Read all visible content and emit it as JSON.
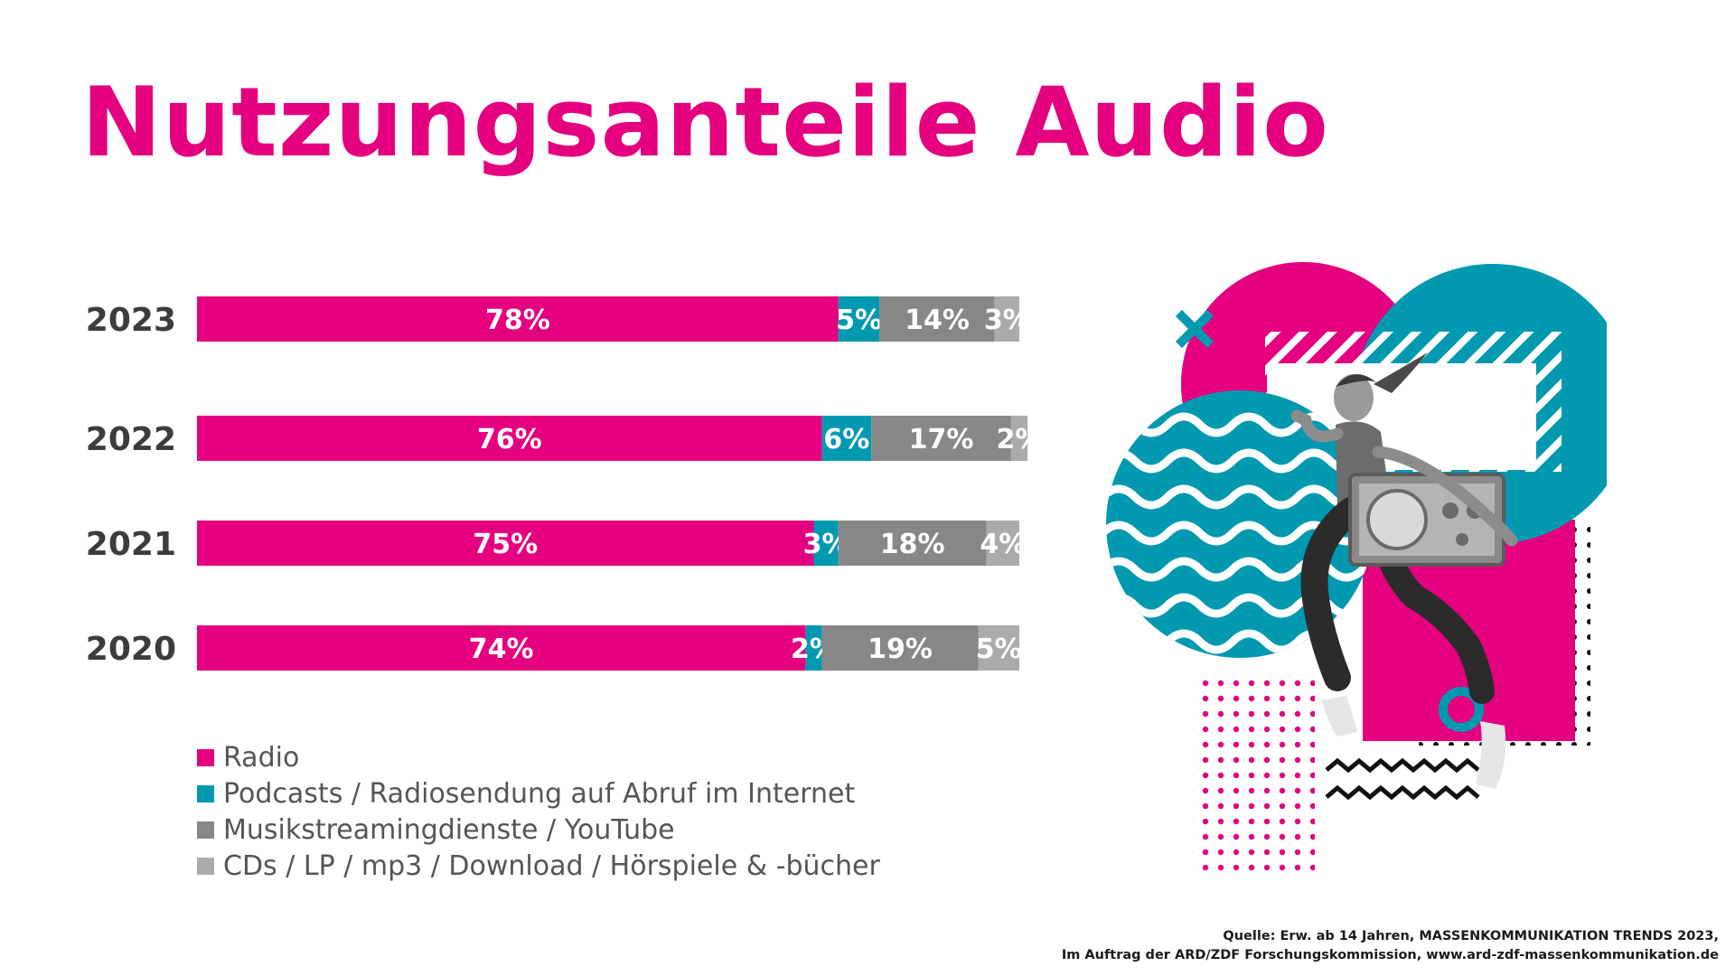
{
  "title": "Nutzungsanteile Audio",
  "source": {
    "line1": "Quelle: Erw. ab 14 Jahren, MASSENKOMMUNIKATION TRENDS 2023,",
    "line2": "Im Auftrag der ARD/ZDF Forschungskommission, www.ard-zdf-massenkommunikation.de"
  },
  "colors": {
    "brand": "#e4007f",
    "accent": "#0099b0"
  },
  "chart_data": {
    "type": "bar",
    "orientation": "horizontal",
    "stacked": true,
    "categories": [
      "2023",
      "2022",
      "2021",
      "2020"
    ],
    "series": [
      {
        "name": "Radio",
        "color": "#e4007f",
        "values": [
          78,
          76,
          75,
          74
        ],
        "labels": [
          "78%",
          "76%",
          "75%",
          "74%"
        ]
      },
      {
        "name": "Podcasts / Radiosendung auf Abruf im Internet",
        "color": "#0099b0",
        "values": [
          5,
          6,
          3,
          2
        ],
        "labels": [
          "5%",
          "6%",
          "3%",
          "2%"
        ]
      },
      {
        "name": "Musikstreamingdienste / YouTube",
        "color": "#878787",
        "values": [
          14,
          17,
          18,
          19
        ],
        "labels": [
          "14%",
          "17%",
          "18%",
          "19%"
        ]
      },
      {
        "name": "CDs / LP / mp3 / Download / Hörspiele & -bücher",
        "color": "#ababab",
        "values": [
          3,
          2,
          4,
          5
        ],
        "labels": [
          "3%",
          "2%",
          "4%",
          "5%"
        ]
      }
    ],
    "xlim": [
      0,
      100
    ],
    "legend_position": "bottom-left",
    "grid": false
  },
  "illustration": {
    "icons": [
      "cross-icon",
      "wave-pattern",
      "dot-pattern",
      "zigzag-icon",
      "radio-icon",
      "runner-figure"
    ]
  }
}
